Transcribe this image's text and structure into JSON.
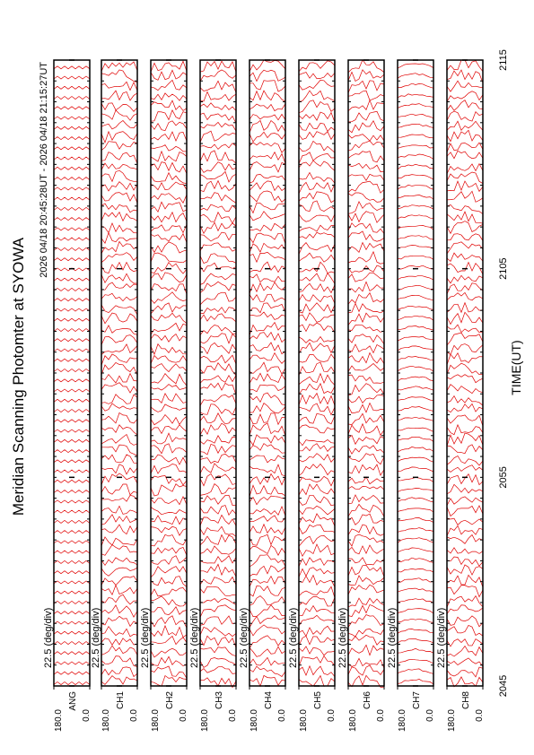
{
  "chart_data": {
    "type": "strip-panels",
    "title": "Meridian Scanning Photomter at SYOWA",
    "subtitle": "2026 04/18 20:45:28UT - 2026 04/18 21:15:27UT",
    "xlabel": "TIME(UT)",
    "xlim": [
      0,
      30
    ],
    "xticks": [
      {
        "value": 0,
        "label": "2045"
      },
      {
        "value": 10,
        "label": "2055"
      },
      {
        "value": 20,
        "label": "2105"
      },
      {
        "value": 30,
        "label": "2115"
      }
    ],
    "ylim": [
      0,
      180
    ],
    "yticks": [
      {
        "value": 180,
        "label": "180.0"
      },
      {
        "value": 0,
        "label": "0.0"
      }
    ],
    "color": "#e00000",
    "panels": [
      {
        "name": "ANG",
        "scale": "22.5 (deg/div)"
      },
      {
        "name": "CH1",
        "scale": "22.5 (deg/div)"
      },
      {
        "name": "CH2",
        "scale": "22.5 (deg/div)"
      },
      {
        "name": "CH3",
        "scale": "22.5 (deg/div)"
      },
      {
        "name": "CH4",
        "scale": "22.5 (deg/div)"
      },
      {
        "name": "CH5",
        "scale": "22.5 (deg/div)"
      },
      {
        "name": "CH6",
        "scale": "22.5 (deg/div)"
      },
      {
        "name": "CH7",
        "scale": "22.5 (deg/div)"
      },
      {
        "name": "CH8",
        "scale": "22.5 (deg/div)"
      }
    ]
  }
}
